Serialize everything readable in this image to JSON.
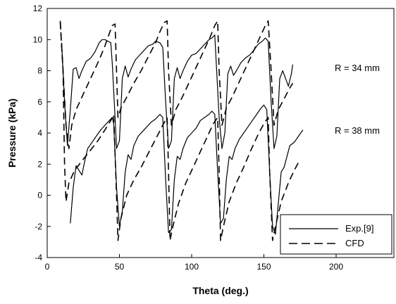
{
  "chart_data": {
    "type": "line",
    "xlabel": "Theta (deg.)",
    "ylabel": "Pressure (kPa)",
    "xlim": [
      0,
      240
    ],
    "ylim": [
      -4,
      12
    ],
    "xticks": [
      0,
      50,
      100,
      150,
      200
    ],
    "yticks": [
      -4,
      -2,
      0,
      2,
      4,
      6,
      8,
      10,
      12
    ],
    "grid": false,
    "legend": {
      "placement": "bottom-right"
    },
    "annotations": [
      {
        "text": "R = 34 mm",
        "x": 190,
        "y": 8.0
      },
      {
        "text": "R = 38 mm",
        "x": 190,
        "y": 4.3
      }
    ],
    "series": [
      {
        "name": "Exp.[9]",
        "style": "solid",
        "color": "#000000",
        "points": [
          [
            10,
            9.8
          ],
          [
            12,
            6.0
          ],
          [
            14,
            3.2
          ],
          [
            16,
            5.5
          ],
          [
            18,
            8.1
          ],
          [
            20,
            8.2
          ],
          [
            22,
            7.5
          ],
          [
            24,
            8.0
          ],
          [
            27,
            8.6
          ],
          [
            30,
            8.8
          ],
          [
            33,
            9.2
          ],
          [
            36,
            9.8
          ],
          [
            38,
            10.0
          ],
          [
            40,
            10.0
          ],
          [
            42,
            9.9
          ],
          [
            44,
            9.8
          ],
          [
            45,
            8.5
          ],
          [
            47,
            5.0
          ],
          [
            48,
            3.0
          ],
          [
            50,
            3.5
          ],
          [
            52,
            7.5
          ],
          [
            54,
            8.3
          ],
          [
            56,
            7.6
          ],
          [
            58,
            8.1
          ],
          [
            61,
            8.7
          ],
          [
            64,
            9.0
          ],
          [
            67,
            9.3
          ],
          [
            70,
            9.6
          ],
          [
            73,
            9.7
          ],
          [
            75,
            9.9
          ],
          [
            78,
            9.8
          ],
          [
            80,
            9.5
          ],
          [
            82,
            6.0
          ],
          [
            84,
            3.0
          ],
          [
            86,
            3.5
          ],
          [
            88,
            7.5
          ],
          [
            90,
            8.2
          ],
          [
            92,
            7.5
          ],
          [
            94,
            8.0
          ],
          [
            97,
            8.6
          ],
          [
            100,
            9.0
          ],
          [
            103,
            9.1
          ],
          [
            106,
            9.4
          ],
          [
            109,
            9.7
          ],
          [
            112,
            10.0
          ],
          [
            114,
            10.1
          ],
          [
            116,
            10.3
          ],
          [
            117,
            8.5
          ],
          [
            119,
            5.0
          ],
          [
            121,
            3.0
          ],
          [
            123,
            4.0
          ],
          [
            125,
            7.8
          ],
          [
            127,
            8.3
          ],
          [
            129,
            7.7
          ],
          [
            131,
            8.0
          ],
          [
            134,
            8.5
          ],
          [
            137,
            8.8
          ],
          [
            140,
            9.0
          ],
          [
            143,
            9.3
          ],
          [
            146,
            9.7
          ],
          [
            149,
            9.9
          ],
          [
            151,
            10.1
          ],
          [
            153,
            9.9
          ],
          [
            155,
            6.0
          ],
          [
            157,
            3.0
          ],
          [
            159,
            3.8
          ],
          [
            161,
            7.5
          ],
          [
            163,
            8.0
          ],
          [
            165,
            7.5
          ],
          [
            167,
            7.0
          ],
          [
            169,
            7.8
          ],
          [
            170,
            8.4
          ]
        ],
        "points_b": [
          [
            16,
            -1.8
          ],
          [
            18,
            0.5
          ],
          [
            20,
            1.9
          ],
          [
            22,
            1.6
          ],
          [
            24,
            1.3
          ],
          [
            26,
            2.2
          ],
          [
            28,
            3.0
          ],
          [
            31,
            3.4
          ],
          [
            34,
            3.8
          ],
          [
            37,
            4.2
          ],
          [
            40,
            4.5
          ],
          [
            43,
            4.8
          ],
          [
            45,
            5.0
          ],
          [
            46,
            4.6
          ],
          [
            48,
            0.5
          ],
          [
            50,
            -2.0
          ],
          [
            52,
            -1.0
          ],
          [
            54,
            1.5
          ],
          [
            56,
            2.6
          ],
          [
            58,
            2.3
          ],
          [
            60,
            3.2
          ],
          [
            63,
            3.8
          ],
          [
            66,
            4.1
          ],
          [
            69,
            4.4
          ],
          [
            72,
            4.7
          ],
          [
            75,
            4.9
          ],
          [
            78,
            5.2
          ],
          [
            80,
            5.0
          ],
          [
            82,
            1.0
          ],
          [
            84,
            -2.4
          ],
          [
            86,
            -2.2
          ],
          [
            88,
            1.0
          ],
          [
            90,
            2.5
          ],
          [
            92,
            2.3
          ],
          [
            94,
            3.0
          ],
          [
            97,
            3.7
          ],
          [
            100,
            4.0
          ],
          [
            103,
            4.3
          ],
          [
            106,
            4.8
          ],
          [
            109,
            5.0
          ],
          [
            112,
            5.2
          ],
          [
            114,
            5.4
          ],
          [
            116,
            5.2
          ],
          [
            118,
            1.5
          ],
          [
            120,
            -1.8
          ],
          [
            122,
            -1.5
          ],
          [
            124,
            1.0
          ],
          [
            126,
            2.5
          ],
          [
            128,
            2.3
          ],
          [
            130,
            3.0
          ],
          [
            133,
            3.6
          ],
          [
            136,
            4.0
          ],
          [
            139,
            4.4
          ],
          [
            142,
            4.8
          ],
          [
            145,
            5.2
          ],
          [
            148,
            5.6
          ],
          [
            150,
            5.8
          ],
          [
            152,
            5.5
          ],
          [
            154,
            1.5
          ],
          [
            156,
            -2.0
          ],
          [
            158,
            -2.5
          ],
          [
            160,
            -0.5
          ],
          [
            162,
            1.5
          ],
          [
            164,
            1.8
          ],
          [
            166,
            2.5
          ],
          [
            168,
            3.2
          ],
          [
            171,
            3.4
          ],
          [
            174,
            3.8
          ],
          [
            177,
            4.2
          ]
        ]
      },
      {
        "name": "CFD",
        "style": "dashed",
        "color": "#000000",
        "points": [
          [
            9,
            11.2
          ],
          [
            11,
            8.0
          ],
          [
            13,
            4.5
          ],
          [
            15,
            3.0
          ],
          [
            17,
            4.5
          ],
          [
            20,
            5.5
          ],
          [
            24,
            6.3
          ],
          [
            28,
            7.1
          ],
          [
            32,
            7.9
          ],
          [
            36,
            8.7
          ],
          [
            40,
            9.6
          ],
          [
            43,
            10.4
          ],
          [
            45,
            10.9
          ],
          [
            47,
            11.0
          ],
          [
            48,
            8.0
          ],
          [
            49,
            5.0
          ],
          [
            51,
            5.6
          ],
          [
            55,
            6.3
          ],
          [
            60,
            7.2
          ],
          [
            65,
            8.0
          ],
          [
            70,
            8.9
          ],
          [
            75,
            9.8
          ],
          [
            78,
            10.5
          ],
          [
            81,
            11.1
          ],
          [
            83,
            11.2
          ],
          [
            84,
            8.0
          ],
          [
            86,
            4.5
          ],
          [
            89,
            5.5
          ],
          [
            93,
            6.2
          ],
          [
            97,
            7.0
          ],
          [
            101,
            7.8
          ],
          [
            105,
            8.6
          ],
          [
            109,
            9.4
          ],
          [
            113,
            10.2
          ],
          [
            116,
            10.9
          ],
          [
            118,
            11.2
          ],
          [
            119,
            8.0
          ],
          [
            121,
            4.5
          ],
          [
            124,
            5.6
          ],
          [
            128,
            6.3
          ],
          [
            132,
            7.1
          ],
          [
            136,
            7.9
          ],
          [
            140,
            8.7
          ],
          [
            144,
            9.5
          ],
          [
            148,
            10.3
          ],
          [
            151,
            10.9
          ],
          [
            153,
            11.2
          ],
          [
            155,
            8.0
          ],
          [
            157,
            4.5
          ],
          [
            160,
            5.5
          ],
          [
            164,
            6.2
          ],
          [
            168,
            6.9
          ],
          [
            170,
            7.2
          ]
        ],
        "points_b": [
          [
            9,
            11.1
          ],
          [
            11,
            8.0
          ],
          [
            12,
            2.0
          ],
          [
            13,
            -0.4
          ],
          [
            15,
            0.8
          ],
          [
            19,
            1.6
          ],
          [
            24,
            2.2
          ],
          [
            30,
            2.9
          ],
          [
            35,
            3.5
          ],
          [
            40,
            4.2
          ],
          [
            44,
            4.8
          ],
          [
            46,
            5.2
          ],
          [
            48,
            0.0
          ],
          [
            49,
            -2.9
          ],
          [
            51,
            -1.5
          ],
          [
            55,
            0.0
          ],
          [
            60,
            1.0
          ],
          [
            65,
            1.8
          ],
          [
            70,
            2.7
          ],
          [
            75,
            3.6
          ],
          [
            80,
            4.5
          ],
          [
            83,
            5.0
          ],
          [
            84,
            1.5
          ],
          [
            85,
            -2.9
          ],
          [
            87,
            -2.0
          ],
          [
            91,
            -0.5
          ],
          [
            96,
            0.8
          ],
          [
            101,
            1.8
          ],
          [
            106,
            2.8
          ],
          [
            111,
            3.8
          ],
          [
            115,
            4.6
          ],
          [
            118,
            5.0
          ],
          [
            119,
            1.5
          ],
          [
            120,
            -2.9
          ],
          [
            122,
            -2.0
          ],
          [
            126,
            -0.4
          ],
          [
            131,
            0.8
          ],
          [
            136,
            1.8
          ],
          [
            141,
            2.9
          ],
          [
            146,
            3.9
          ],
          [
            150,
            4.6
          ],
          [
            153,
            5.0
          ],
          [
            154,
            1.5
          ],
          [
            156,
            -2.9
          ],
          [
            158,
            -2.0
          ],
          [
            162,
            -0.4
          ],
          [
            167,
            0.8
          ],
          [
            171,
            1.6
          ],
          [
            175,
            2.3
          ]
        ]
      }
    ]
  }
}
